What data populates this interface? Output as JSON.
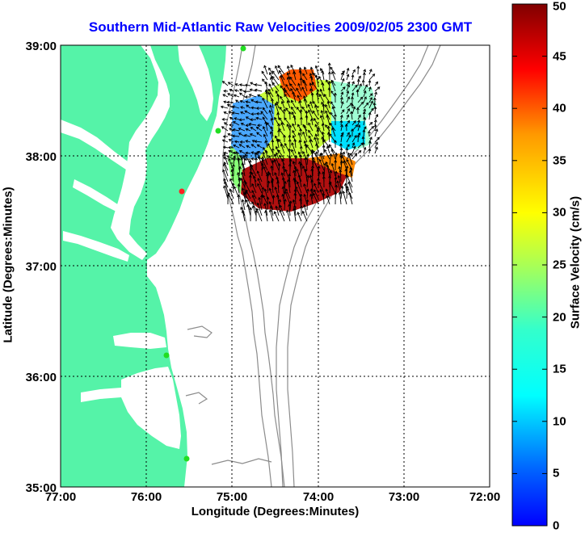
{
  "title": "Southern Mid-Atlantic Raw Velocities 2009/02/05 2300 GMT",
  "x_axis": {
    "label": "Longitude (Degrees:Minutes)",
    "ticks": [
      "77:00",
      "76:00",
      "75:00",
      "74:00",
      "73:00",
      "72:00"
    ]
  },
  "y_axis": {
    "label": "Latitude (Degrees:Minutes)",
    "ticks": [
      "39:00",
      "38:00",
      "37:00",
      "36:00",
      "35:00"
    ]
  },
  "colorbar": {
    "label": "Surface Velocity (cm/s)",
    "ticks": [
      "50",
      "45",
      "40",
      "35",
      "30",
      "25",
      "20",
      "15",
      "10",
      "5",
      "0"
    ],
    "min": 0,
    "max": 50
  },
  "map": {
    "lon_range": [
      -77,
      -72
    ],
    "lat_range": [
      35,
      39
    ],
    "grid": true,
    "land_color": "#55f3a8",
    "bathymetry_color": "#8c8c8c",
    "radar_stations": [
      {
        "lon": -74.88,
        "lat": 39.05,
        "color": "#22dd22"
      },
      {
        "lon": -75.16,
        "lat": 38.23,
        "color": "#22dd22"
      },
      {
        "lon": -75.46,
        "lat": 37.72,
        "color": "#ff2222"
      },
      {
        "lon": -75.7,
        "lat": 36.18,
        "color": "#22dd22"
      },
      {
        "lon": -75.47,
        "lat": 35.25,
        "color": "#22dd22"
      }
    ]
  },
  "velocity_field": {
    "lon_range": [
      -75.0,
      -73.2
    ],
    "lat_range": [
      37.5,
      38.8
    ],
    "regions": [
      {
        "lon": -74.85,
        "lat": 38.25,
        "speed": 8
      },
      {
        "lon": -74.4,
        "lat": 38.4,
        "speed": 28
      },
      {
        "lon": -74.0,
        "lat": 38.6,
        "speed": 42
      },
      {
        "lon": -74.15,
        "lat": 37.72,
        "speed": 48
      },
      {
        "lon": -73.75,
        "lat": 38.25,
        "speed": 12
      },
      {
        "lon": -73.95,
        "lat": 37.85,
        "speed": 38
      },
      {
        "lon": -74.75,
        "lat": 37.95,
        "speed": 22
      }
    ]
  }
}
